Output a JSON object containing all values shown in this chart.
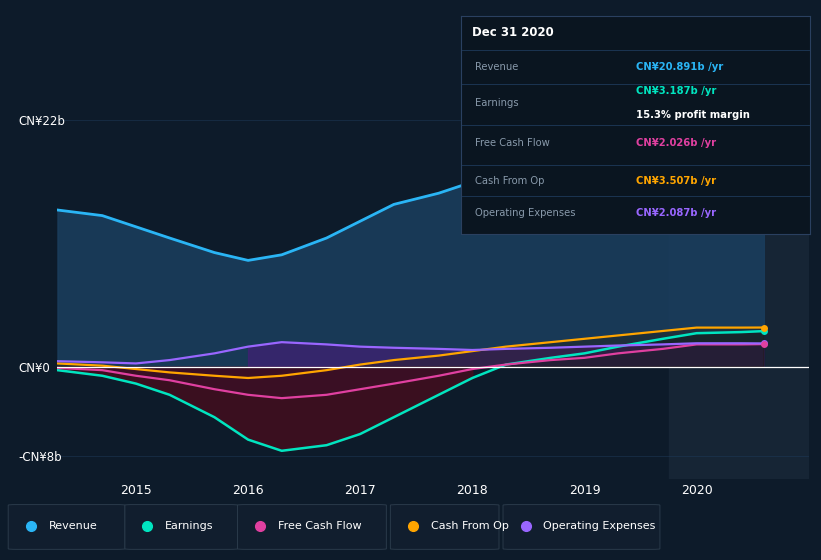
{
  "bg_color": "#0d1b2a",
  "plot_bg_color": "#0d1b2a",
  "ylim": [
    -10,
    26
  ],
  "y_zero": 0,
  "y_top": 22,
  "y_bot": -8,
  "xticks": [
    2015,
    2016,
    2017,
    2018,
    2019,
    2020
  ],
  "years": [
    2014.3,
    2014.7,
    2015.0,
    2015.3,
    2015.7,
    2016.0,
    2016.3,
    2016.7,
    2017.0,
    2017.3,
    2017.7,
    2018.0,
    2018.3,
    2018.7,
    2019.0,
    2019.3,
    2019.7,
    2020.0,
    2020.4,
    2020.6
  ],
  "revenue": [
    14.0,
    13.5,
    12.5,
    11.5,
    10.2,
    9.5,
    10.0,
    11.5,
    13.0,
    14.5,
    15.5,
    16.5,
    17.5,
    18.5,
    19.0,
    20.0,
    21.0,
    21.5,
    21.0,
    20.891
  ],
  "earnings": [
    -0.3,
    -0.8,
    -1.5,
    -2.5,
    -4.5,
    -6.5,
    -7.5,
    -7.0,
    -6.0,
    -4.5,
    -2.5,
    -1.0,
    0.2,
    0.8,
    1.2,
    1.8,
    2.5,
    3.0,
    3.1,
    3.187
  ],
  "free_cash_flow": [
    -0.1,
    -0.3,
    -0.8,
    -1.2,
    -2.0,
    -2.5,
    -2.8,
    -2.5,
    -2.0,
    -1.5,
    -0.8,
    -0.2,
    0.2,
    0.6,
    0.8,
    1.2,
    1.6,
    2.0,
    2.0,
    2.026
  ],
  "cash_from_op": [
    0.3,
    0.1,
    -0.2,
    -0.5,
    -0.8,
    -1.0,
    -0.8,
    -0.3,
    0.2,
    0.6,
    1.0,
    1.4,
    1.8,
    2.2,
    2.5,
    2.8,
    3.2,
    3.5,
    3.5,
    3.507
  ],
  "operating_exp": [
    0.5,
    0.4,
    0.3,
    0.6,
    1.2,
    1.8,
    2.2,
    2.0,
    1.8,
    1.7,
    1.6,
    1.5,
    1.6,
    1.7,
    1.8,
    1.9,
    2.0,
    2.1,
    2.1,
    2.087
  ],
  "revenue_color": "#2ab5f5",
  "earnings_color": "#00e5c0",
  "fcf_color": "#e040a0",
  "cashop_color": "#ffa500",
  "opex_color": "#9966ff",
  "grid_color": "#1e3a5a",
  "shade_start": 2019.75,
  "shade_color": "#162535",
  "legend_items": [
    "Revenue",
    "Earnings",
    "Free Cash Flow",
    "Cash From Op",
    "Operating Expenses"
  ],
  "legend_colors": [
    "#2ab5f5",
    "#00e5c0",
    "#e040a0",
    "#ffa500",
    "#9966ff"
  ],
  "tooltip": {
    "title": "Dec 31 2020",
    "rows": [
      {
        "label": "Revenue",
        "value": "CN¥20.891b /yr",
        "color": "#2ab5f5",
        "sub": null
      },
      {
        "label": "Earnings",
        "value": "CN¥3.187b /yr",
        "color": "#00e5c0",
        "sub": "15.3% profit margin"
      },
      {
        "label": "Free Cash Flow",
        "value": "CN¥2.026b /yr",
        "color": "#e040a0",
        "sub": null
      },
      {
        "label": "Cash From Op",
        "value": "CN¥3.507b /yr",
        "color": "#ffa500",
        "sub": null
      },
      {
        "label": "Operating Expenses",
        "value": "CN¥2.087b /yr",
        "color": "#9966ff",
        "sub": null
      }
    ]
  }
}
